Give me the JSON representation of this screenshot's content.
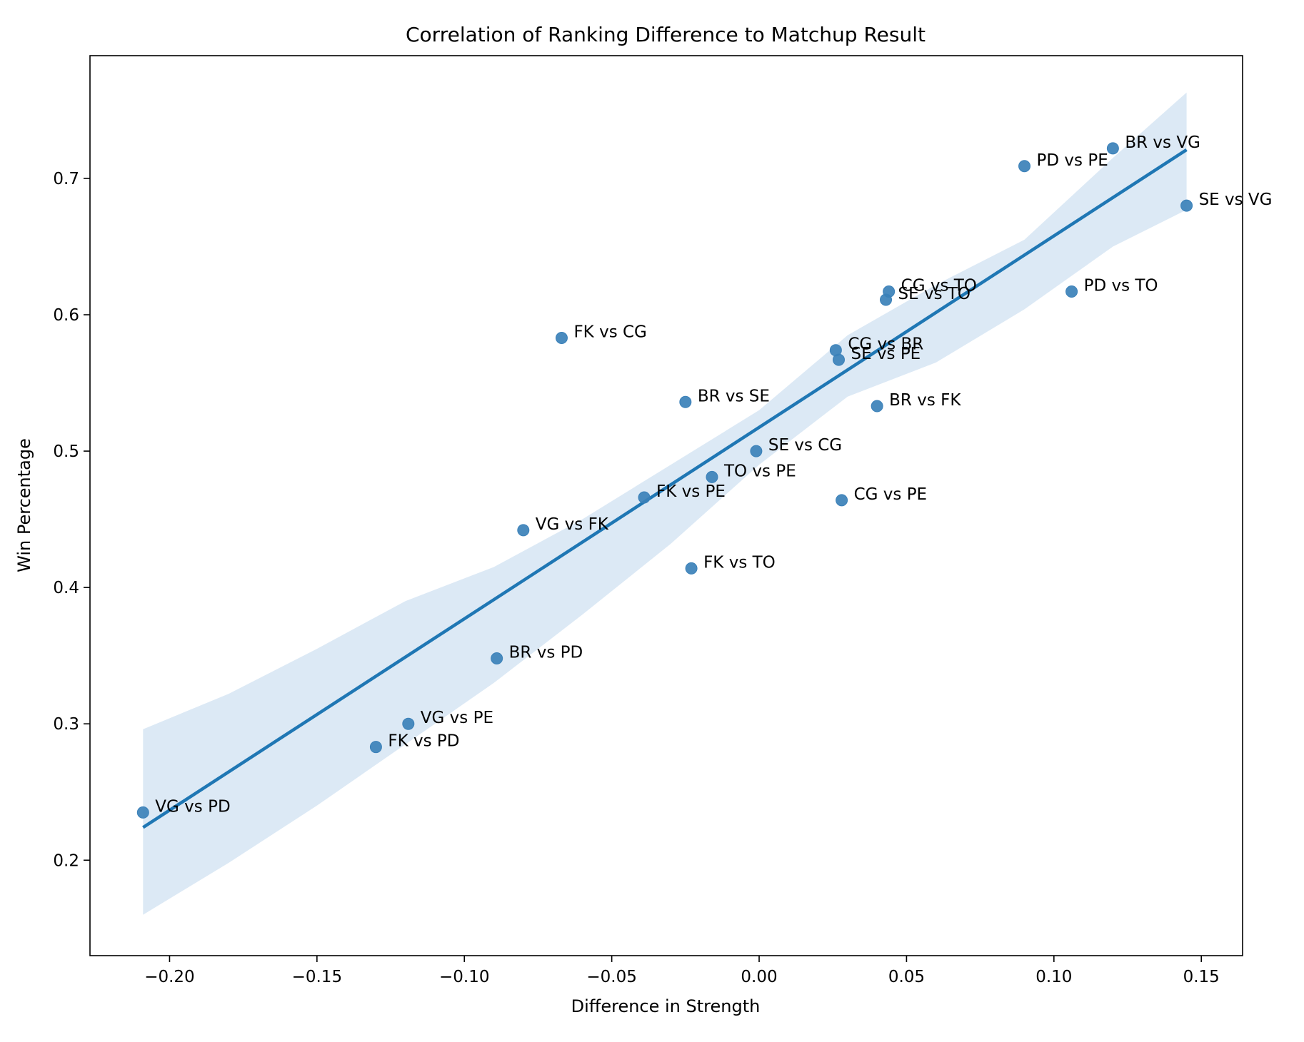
{
  "chart_data": {
    "type": "scatter",
    "title": "Correlation of Ranking Difference to Matchup Result",
    "xlabel": "Difference in Strength",
    "ylabel": "Win Percentage",
    "xlim": [
      -0.227,
      0.164
    ],
    "ylim": [
      0.13,
      0.79
    ],
    "xticks": [
      {
        "value": -0.2,
        "label": "−0.20"
      },
      {
        "value": -0.15,
        "label": "−0.15"
      },
      {
        "value": -0.1,
        "label": "−0.10"
      },
      {
        "value": -0.05,
        "label": "−0.05"
      },
      {
        "value": 0.0,
        "label": "0.00"
      },
      {
        "value": 0.05,
        "label": "0.05"
      },
      {
        "value": 0.1,
        "label": "0.10"
      },
      {
        "value": 0.15,
        "label": "0.15"
      }
    ],
    "yticks": [
      {
        "value": 0.2,
        "label": "0.2"
      },
      {
        "value": 0.3,
        "label": "0.3"
      },
      {
        "value": 0.4,
        "label": "0.4"
      },
      {
        "value": 0.5,
        "label": "0.5"
      },
      {
        "value": 0.6,
        "label": "0.6"
      },
      {
        "value": 0.7,
        "label": "0.7"
      }
    ],
    "grid": false,
    "colors": {
      "points": "#3b81b9",
      "regression_line": "#1f77b4",
      "confidence_band": "#c6dbef"
    },
    "points": [
      {
        "label": "BR vs VG",
        "x": 0.12,
        "y": 0.722
      },
      {
        "label": "PD vs PE",
        "x": 0.09,
        "y": 0.709
      },
      {
        "label": "SE vs VG",
        "x": 0.145,
        "y": 0.68
      },
      {
        "label": "CG vs TO",
        "x": 0.044,
        "y": 0.617
      },
      {
        "label": "SE vs TO",
        "x": 0.043,
        "y": 0.611
      },
      {
        "label": "PD vs TO",
        "x": 0.106,
        "y": 0.617
      },
      {
        "label": "FK vs CG",
        "x": -0.067,
        "y": 0.583
      },
      {
        "label": "CG vs BR",
        "x": 0.026,
        "y": 0.574
      },
      {
        "label": "SE vs PE",
        "x": 0.027,
        "y": 0.567
      },
      {
        "label": "BR vs SE",
        "x": -0.025,
        "y": 0.536
      },
      {
        "label": "BR vs FK",
        "x": 0.04,
        "y": 0.533
      },
      {
        "label": "SE vs CG",
        "x": -0.001,
        "y": 0.5
      },
      {
        "label": "TO vs PE",
        "x": -0.016,
        "y": 0.481
      },
      {
        "label": "FK vs PE",
        "x": -0.039,
        "y": 0.466
      },
      {
        "label": "CG vs PE",
        "x": 0.028,
        "y": 0.464
      },
      {
        "label": "VG vs FK",
        "x": -0.08,
        "y": 0.442
      },
      {
        "label": "FK vs TO",
        "x": -0.023,
        "y": 0.414
      },
      {
        "label": "BR vs PD",
        "x": -0.089,
        "y": 0.348
      },
      {
        "label": "VG vs PE",
        "x": -0.119,
        "y": 0.3
      },
      {
        "label": "FK vs PD",
        "x": -0.13,
        "y": 0.283
      },
      {
        "label": "VG vs PD",
        "x": -0.209,
        "y": 0.235
      }
    ],
    "regression_line": {
      "x": [
        -0.209,
        0.145
      ],
      "y": [
        0.224,
        0.721
      ]
    },
    "confidence_band": {
      "x": [
        -0.209,
        -0.18,
        -0.15,
        -0.12,
        -0.09,
        -0.06,
        -0.03,
        0.0,
        0.03,
        0.06,
        0.09,
        0.12,
        0.145
      ],
      "upper": [
        0.296,
        0.322,
        0.355,
        0.39,
        0.415,
        0.45,
        0.49,
        0.53,
        0.585,
        0.622,
        0.655,
        0.715,
        0.763
      ],
      "lower": [
        0.16,
        0.198,
        0.24,
        0.285,
        0.33,
        0.38,
        0.432,
        0.49,
        0.54,
        0.565,
        0.604,
        0.65,
        0.677
      ]
    }
  }
}
